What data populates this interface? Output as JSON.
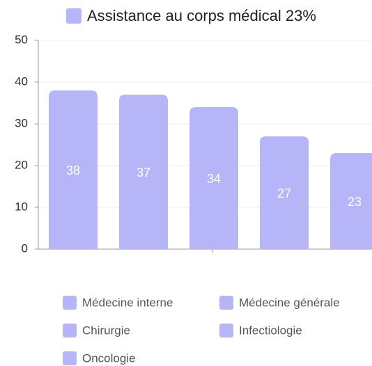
{
  "chart_data": {
    "type": "bar",
    "title": "Assistance au corps médical 23%",
    "categories": [
      "Médecine interne",
      "Médecine générale",
      "Chirurgie",
      "Infectiologie",
      "Oncologie"
    ],
    "values": [
      38,
      37,
      34,
      27,
      23
    ],
    "color": "#b5b5f8",
    "ylim": [
      0,
      50
    ],
    "yticks": [
      0,
      10,
      20,
      30,
      40,
      50
    ],
    "grid": true
  }
}
